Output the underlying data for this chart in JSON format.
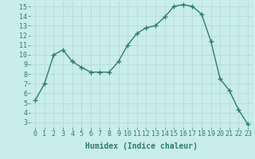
{
  "x": [
    0,
    1,
    2,
    3,
    4,
    5,
    6,
    7,
    8,
    9,
    10,
    11,
    12,
    13,
    14,
    15,
    16,
    17,
    18,
    19,
    20,
    21,
    22,
    23
  ],
  "y": [
    5.3,
    7.0,
    10.0,
    10.5,
    9.3,
    8.7,
    8.2,
    8.2,
    8.2,
    9.3,
    11.0,
    12.2,
    12.8,
    13.0,
    13.9,
    15.0,
    15.2,
    15.0,
    14.2,
    11.4,
    7.5,
    6.3,
    4.3,
    2.8
  ],
  "line_color": "#2e7d6e",
  "marker": "+",
  "markersize": 4,
  "linewidth": 1.0,
  "xlabel": "Humidex (Indice chaleur)",
  "xlabel_fontsize": 7,
  "bg_color": "#c9ecec",
  "grid_color": "#b0d8d8",
  "xlim": [
    -0.5,
    23.5
  ],
  "ylim": [
    2.5,
    15.5
  ],
  "yticks": [
    3,
    4,
    5,
    6,
    7,
    8,
    9,
    10,
    11,
    12,
    13,
    14,
    15
  ],
  "xticks": [
    0,
    1,
    2,
    3,
    4,
    5,
    6,
    7,
    8,
    9,
    10,
    11,
    12,
    13,
    14,
    15,
    16,
    17,
    18,
    19,
    20,
    21,
    22,
    23
  ],
  "tick_fontsize": 6,
  "markeredgewidth": 1.0
}
